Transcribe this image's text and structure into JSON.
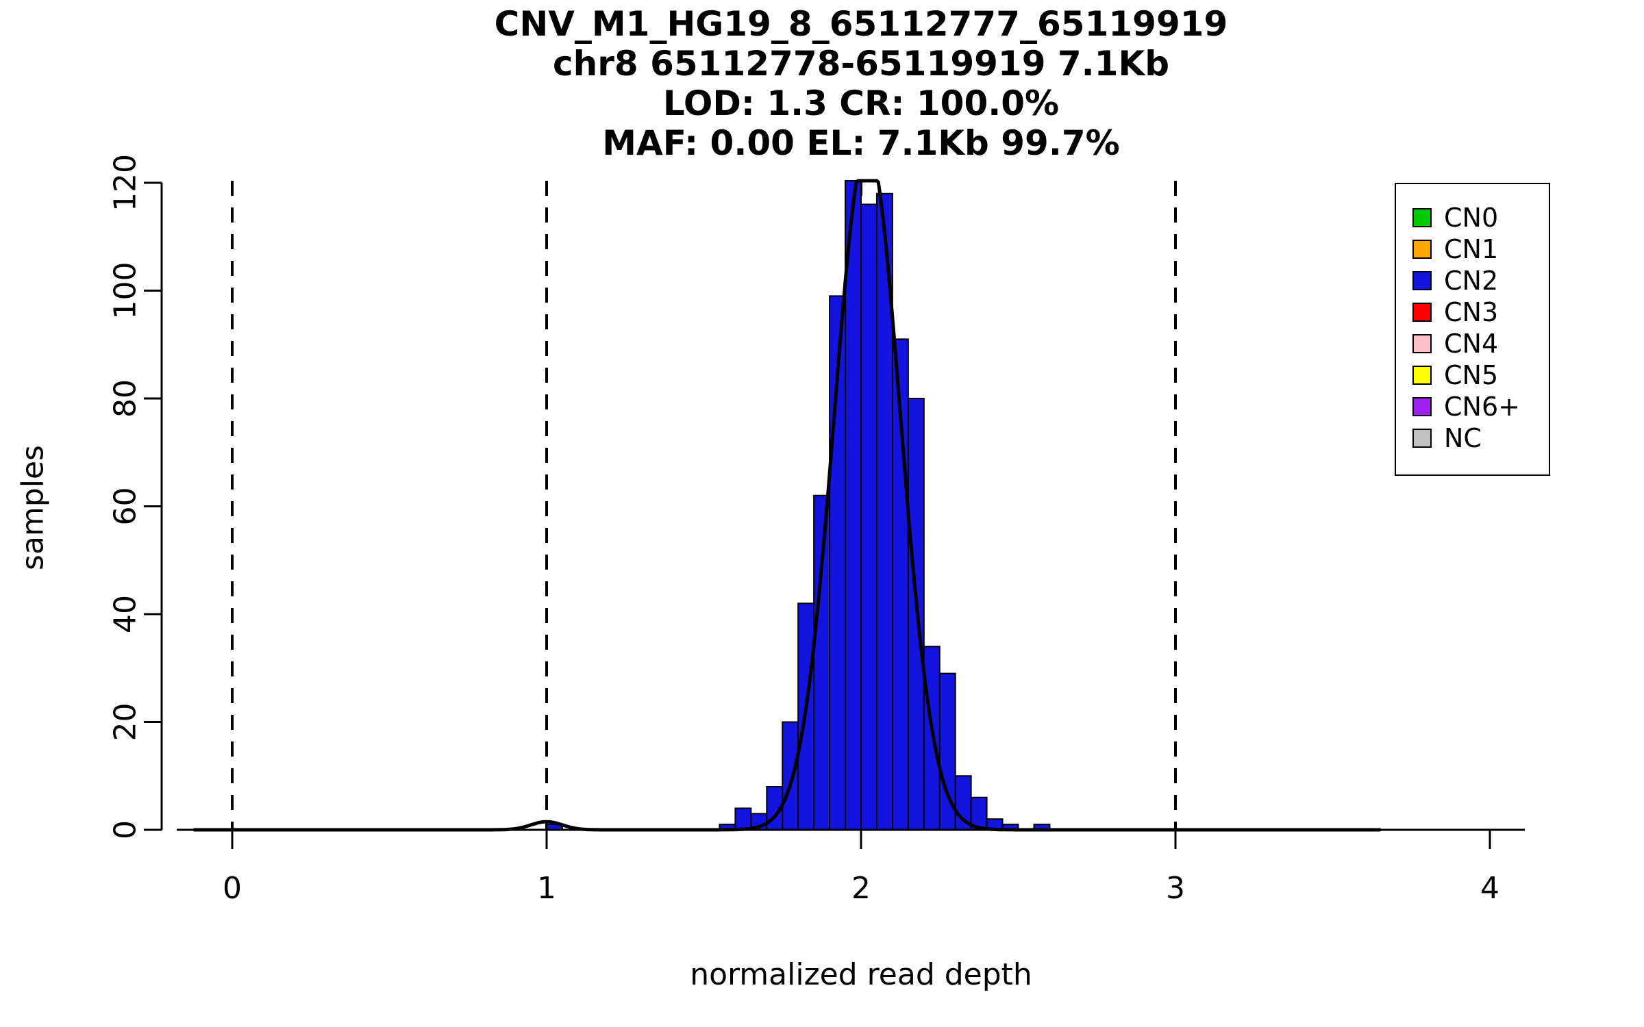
{
  "chart_data": {
    "type": "histogram",
    "title_lines": [
      "CNV_M1_HG19_8_65112777_65119919",
      "chr8 65112778-65119919 7.1Kb",
      "LOD: 1.3 CR: 100.0%",
      "MAF: 0.00 EL: 7.1Kb 99.7%"
    ],
    "xlabel": "normalized read depth",
    "ylabel": "samples",
    "x_ticks": [
      0,
      1,
      2,
      3,
      4
    ],
    "y_ticks": [
      0,
      20,
      40,
      60,
      80,
      100,
      120
    ],
    "xlim": [
      -0.18,
      4.12
    ],
    "ylim": [
      0,
      120
    ],
    "dashed_guides_x": [
      0,
      1,
      2,
      3
    ],
    "bin_width": 0.05,
    "bar_color": "#1414E0",
    "bar_series_label": "CN2",
    "bars": [
      {
        "x": 1.0,
        "count": 1
      },
      {
        "x": 1.55,
        "count": 1
      },
      {
        "x": 1.6,
        "count": 4
      },
      {
        "x": 1.65,
        "count": 3
      },
      {
        "x": 1.7,
        "count": 8
      },
      {
        "x": 1.75,
        "count": 20
      },
      {
        "x": 1.8,
        "count": 42
      },
      {
        "x": 1.85,
        "count": 62
      },
      {
        "x": 1.9,
        "count": 99
      },
      {
        "x": 1.95,
        "count": 122
      },
      {
        "x": 2.0,
        "count": 116
      },
      {
        "x": 2.05,
        "count": 118
      },
      {
        "x": 2.1,
        "count": 91
      },
      {
        "x": 2.15,
        "count": 80
      },
      {
        "x": 2.2,
        "count": 34
      },
      {
        "x": 2.25,
        "count": 29
      },
      {
        "x": 2.3,
        "count": 10
      },
      {
        "x": 2.35,
        "count": 6
      },
      {
        "x": 2.4,
        "count": 2
      },
      {
        "x": 2.45,
        "count": 1
      },
      {
        "x": 2.55,
        "count": 1
      }
    ],
    "density_curve": {
      "mean": 2.02,
      "sd": 0.105,
      "peak": 127,
      "secondary_bump": {
        "mean": 1.0,
        "sd": 0.05,
        "peak": 1.5
      },
      "x_range": [
        -0.12,
        3.65
      ],
      "color": "#000000"
    },
    "legend": {
      "items": [
        {
          "label": "CN0",
          "color": "#00CC00"
        },
        {
          "label": "CN1",
          "color": "#FFA500"
        },
        {
          "label": "CN2",
          "color": "#1414E0"
        },
        {
          "label": "CN3",
          "color": "#FF0000"
        },
        {
          "label": "CN4",
          "color": "#FFC0CB"
        },
        {
          "label": "CN5",
          "color": "#FFFF00"
        },
        {
          "label": "CN6+",
          "color": "#A020F0"
        },
        {
          "label": "NC",
          "color": "#C0C0C0"
        }
      ]
    }
  }
}
